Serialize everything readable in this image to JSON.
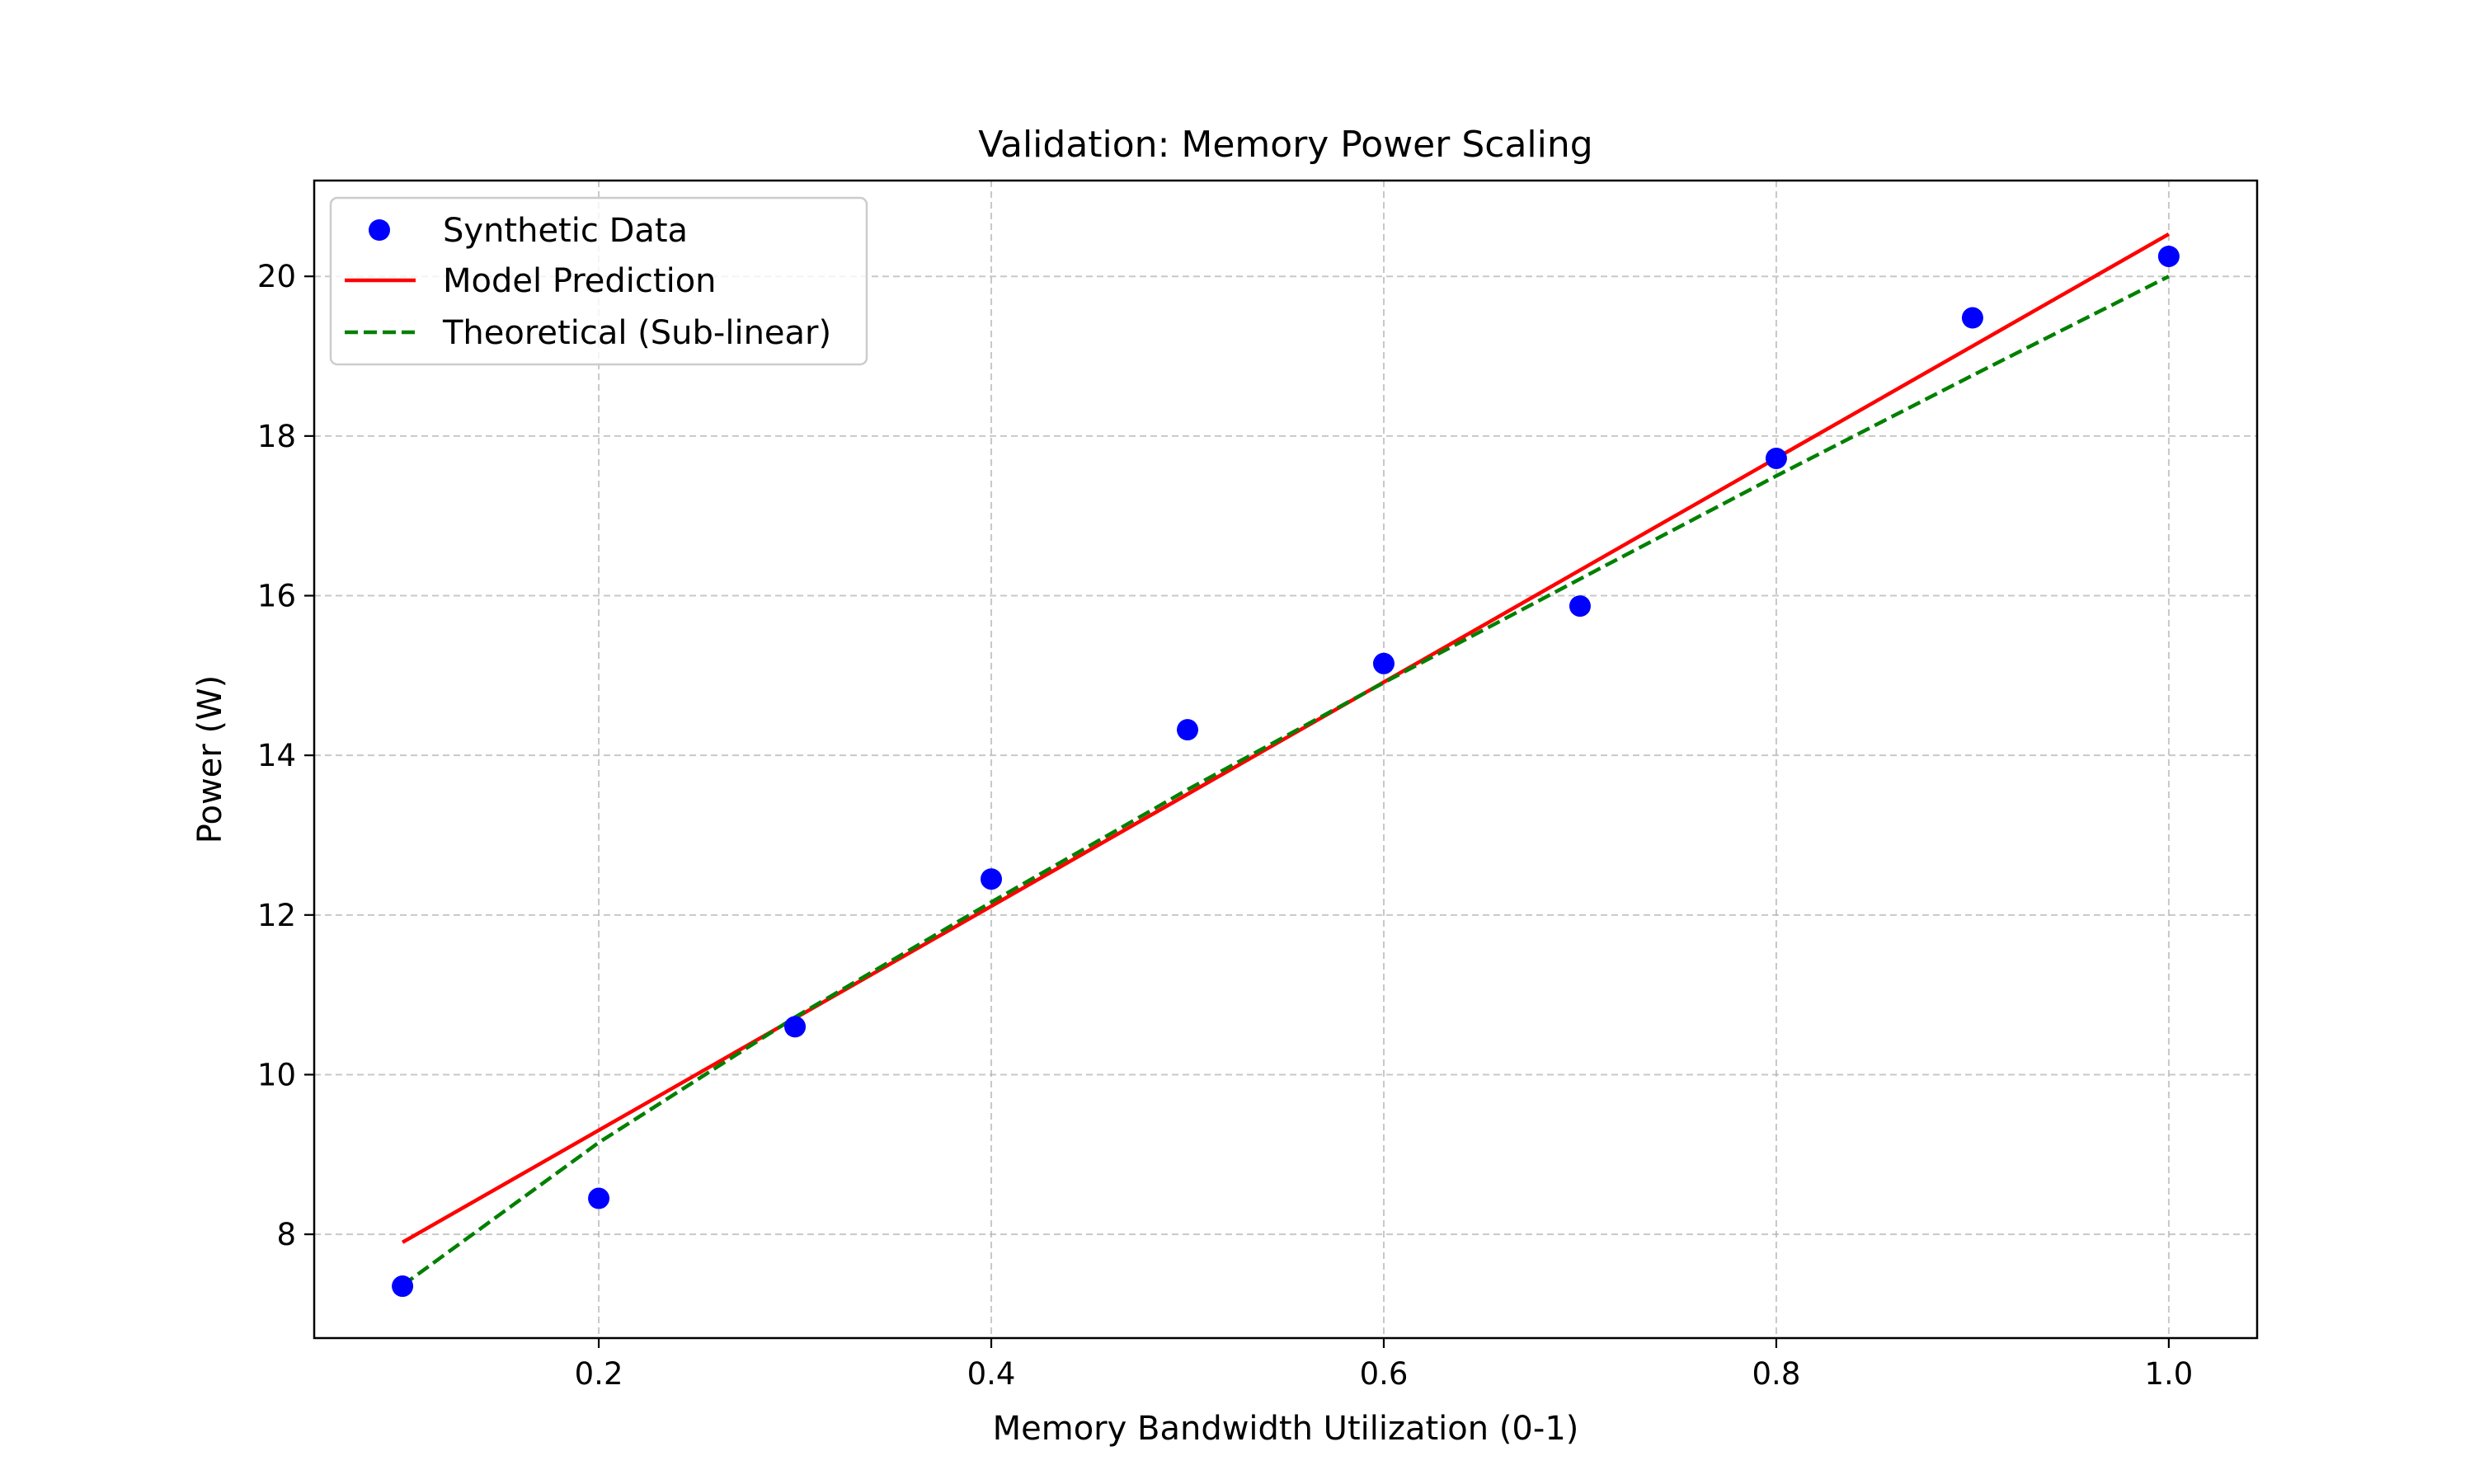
{
  "chart_data": {
    "type": "scatter",
    "title": "Validation: Memory Power Scaling",
    "xlabel": "Memory Bandwidth Utilization (0-1)",
    "ylabel": "Power (W)",
    "xlim": [
      0.055,
      1.045
    ],
    "ylim": [
      6.7,
      21.2
    ],
    "xticks": [
      0.2,
      0.4,
      0.6,
      0.8,
      1.0
    ],
    "xtick_labels": [
      "0.2",
      "0.4",
      "0.6",
      "0.8",
      "1.0"
    ],
    "yticks": [
      8,
      10,
      12,
      14,
      16,
      18,
      20
    ],
    "ytick_labels": [
      "8",
      "10",
      "12",
      "14",
      "16",
      "18",
      "20"
    ],
    "grid": true,
    "legend_position": "top-left",
    "series": [
      {
        "name": "Synthetic Data",
        "kind": "scatter",
        "color": "#0000ff",
        "x": [
          0.1,
          0.2,
          0.3,
          0.4,
          0.5,
          0.6,
          0.7,
          0.8,
          0.9,
          1.0
        ],
        "y": [
          7.35,
          8.45,
          10.6,
          12.45,
          14.32,
          15.15,
          15.87,
          17.72,
          19.48,
          20.25
        ]
      },
      {
        "name": "Model Prediction",
        "kind": "line",
        "style": "solid",
        "color": "#ff0000",
        "x": [
          0.1,
          1.0
        ],
        "y": [
          7.9,
          20.53
        ]
      },
      {
        "name": "Theoretical (Sub-linear)",
        "kind": "line",
        "style": "dashed",
        "color": "#008000",
        "x": [
          0.1,
          0.2,
          0.3,
          0.4,
          0.5,
          0.6,
          0.7,
          0.8,
          0.9,
          1.0
        ],
        "y": [
          7.36,
          9.15,
          10.72,
          12.16,
          13.57,
          14.91,
          16.21,
          17.5,
          18.76,
          20.0
        ]
      }
    ]
  }
}
